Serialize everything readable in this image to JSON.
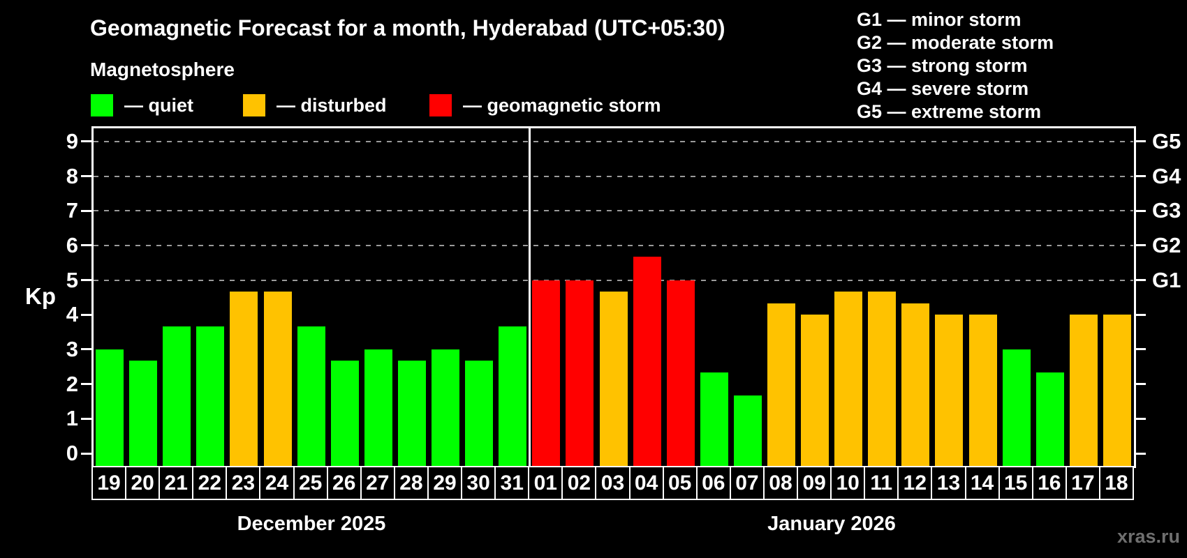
{
  "header": {
    "title": "Geomagnetic Forecast for a month, Hyderabad (UTC+05:30)",
    "subtitle": "Magnetosphere"
  },
  "legend": {
    "items": [
      {
        "key": "quiet",
        "color": "#00ff00",
        "label": "— quiet"
      },
      {
        "key": "disturbed",
        "color": "#ffc200",
        "label": "— disturbed"
      },
      {
        "key": "storm",
        "color": "#ff0000",
        "label": "— geomagnetic storm"
      }
    ]
  },
  "storm_scale_legend": {
    "items": [
      "G1 — minor storm",
      "G2 — moderate storm",
      "G3 — strong storm",
      "G4 — severe storm",
      "G5 — extreme storm"
    ]
  },
  "chart_data": {
    "type": "bar",
    "ylabel": "Kp",
    "ylim": [
      0,
      9
    ],
    "grid": "dashed horizontal at Kp 5-9",
    "legend_position": "top",
    "y_ticks": [
      0,
      1,
      2,
      3,
      4,
      5,
      6,
      7,
      8,
      9
    ],
    "gridlines_at": [
      5,
      6,
      7,
      8,
      9
    ],
    "right_axis_labels": [
      {
        "label": "G1",
        "value": 5
      },
      {
        "label": "G2",
        "value": 6
      },
      {
        "label": "G3",
        "value": 7
      },
      {
        "label": "G4",
        "value": 8
      },
      {
        "label": "G5",
        "value": 9
      }
    ],
    "categories": [
      "19",
      "20",
      "21",
      "22",
      "23",
      "24",
      "25",
      "26",
      "27",
      "28",
      "29",
      "30",
      "31",
      "01",
      "02",
      "03",
      "04",
      "05",
      "06",
      "07",
      "08",
      "09",
      "10",
      "11",
      "12",
      "13",
      "14",
      "15",
      "16",
      "17",
      "18"
    ],
    "values": [
      3.0,
      2.67,
      3.67,
      3.67,
      4.67,
      4.67,
      3.67,
      2.67,
      3.0,
      2.67,
      3.0,
      2.67,
      3.67,
      5.0,
      5.0,
      4.67,
      5.67,
      5.0,
      2.33,
      1.67,
      4.33,
      4.0,
      4.67,
      4.67,
      4.33,
      4.0,
      4.0,
      3.0,
      2.33,
      4.0,
      4.0
    ],
    "statuses": [
      "quiet",
      "quiet",
      "quiet",
      "quiet",
      "disturbed",
      "disturbed",
      "quiet",
      "quiet",
      "quiet",
      "quiet",
      "quiet",
      "quiet",
      "quiet",
      "storm",
      "storm",
      "disturbed",
      "storm",
      "storm",
      "quiet",
      "quiet",
      "disturbed",
      "disturbed",
      "disturbed",
      "disturbed",
      "disturbed",
      "disturbed",
      "disturbed",
      "quiet",
      "quiet",
      "disturbed",
      "disturbed"
    ],
    "colors": {
      "quiet": "#00ff00",
      "disturbed": "#ffc200",
      "storm": "#ff0000"
    },
    "months": [
      {
        "label": "December 2025",
        "days": 13
      },
      {
        "label": "January 2026",
        "days": 18
      }
    ]
  },
  "watermark": "xras.ru"
}
